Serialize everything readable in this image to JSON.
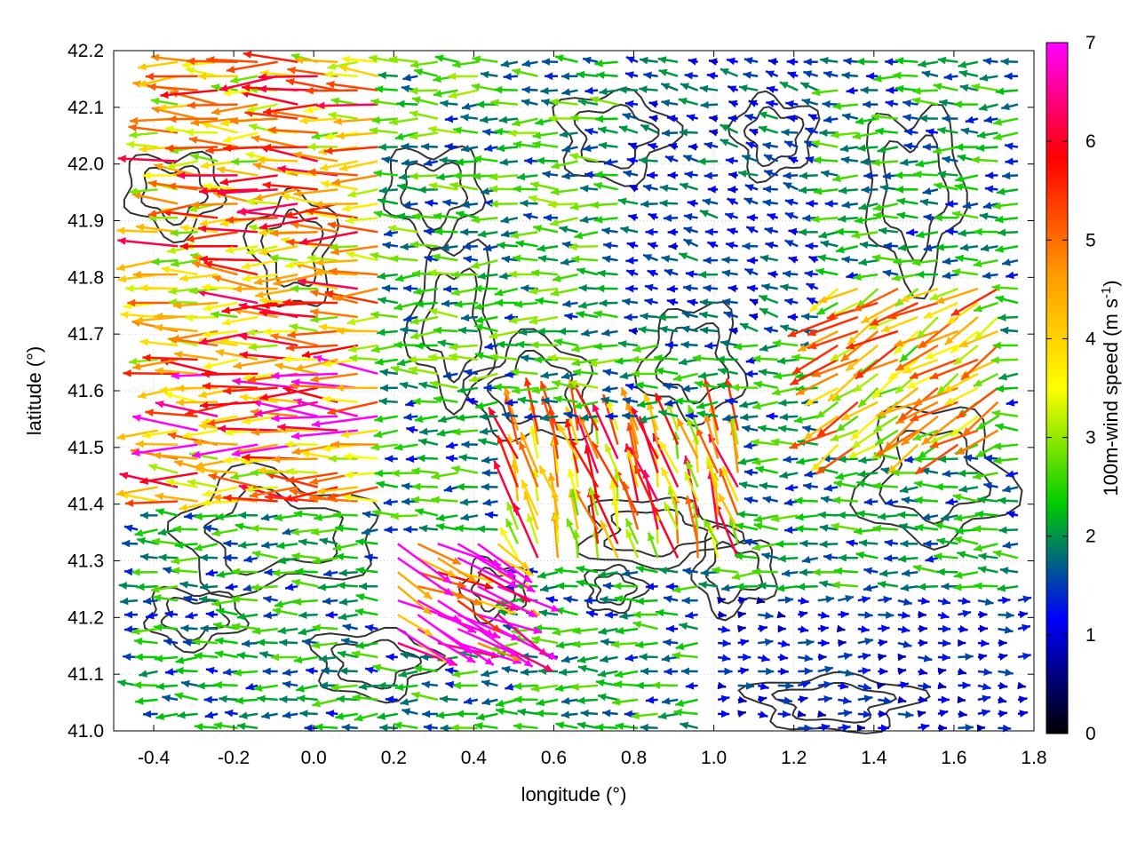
{
  "chart_data": {
    "type": "vector-field",
    "xlabel": "longitude (°)",
    "ylabel": "latitude (°)",
    "colorbar_label_main": "100m-wind speed (m s",
    "colorbar_label_sup": "-1",
    "colorbar_label_end": ")",
    "xlim": [
      -0.5,
      1.8
    ],
    "ylim": [
      41.0,
      42.2
    ],
    "xticks": [
      -0.4,
      -0.2,
      0.0,
      0.2,
      0.4,
      0.6,
      0.8,
      1.0,
      1.2,
      1.4,
      1.6,
      1.8
    ],
    "xtick_labels": [
      "-0.4",
      "-0.2",
      "0.0",
      "0.2",
      "0.4",
      "0.6",
      "0.8",
      "1.0",
      "1.2",
      "1.4",
      "1.6",
      "1.8"
    ],
    "yticks": [
      41.0,
      41.1,
      41.2,
      41.3,
      41.4,
      41.5,
      41.6,
      41.7,
      41.8,
      41.9,
      42.0,
      42.1,
      42.2
    ],
    "ytick_labels": [
      "41.0",
      "41.1",
      "41.2",
      "41.3",
      "41.4",
      "41.5",
      "41.6",
      "41.7",
      "41.8",
      "41.9",
      "42.0",
      "42.1",
      "42.2"
    ],
    "clim": [
      0,
      7
    ],
    "cticks": [
      0,
      1,
      2,
      3,
      4,
      5,
      6,
      7
    ],
    "ctick_labels": [
      "0",
      "1",
      "2",
      "3",
      "4",
      "5",
      "6",
      "7"
    ],
    "colormap": [
      "#000000",
      "#0000ff",
      "#00cc00",
      "#ffff00",
      "#ff9900",
      "#ff0000",
      "#ff00ff"
    ],
    "grid": true,
    "contour_color": "#333333",
    "vector_regions": [
      {
        "lon": [
          -0.5,
          0.2
        ],
        "lat": [
          41.4,
          42.2
        ],
        "u": -4.5,
        "v": 0.05,
        "speed": 4.5
      },
      {
        "lon": [
          -0.5,
          0.2
        ],
        "lat": [
          41.48,
          41.65
        ],
        "u": -5.5,
        "v": 0.05,
        "speed": 5.5
      },
      {
        "lon": [
          0.2,
          0.8
        ],
        "lat": [
          41.6,
          42.2
        ],
        "u": -2.2,
        "v": 0.0,
        "speed": 2.2
      },
      {
        "lon": [
          0.2,
          0.5
        ],
        "lat": [
          41.15,
          41.35
        ],
        "u": 4.0,
        "v": -2.0,
        "speed": 6.5
      },
      {
        "lon": [
          0.5,
          1.1
        ],
        "lat": [
          41.3,
          41.55
        ],
        "u": -0.6,
        "v": 2.0,
        "speed": 4.5
      },
      {
        "lon": [
          1.3,
          1.75
        ],
        "lat": [
          41.5,
          41.8
        ],
        "u": -2.5,
        "v": -1.5,
        "speed": 4.0
      },
      {
        "lon": [
          1.0,
          1.8
        ],
        "lat": [
          41.0,
          41.25
        ],
        "u": 1.5,
        "v": 0.0,
        "speed": 1.2
      },
      {
        "lon": [
          0.8,
          1.3
        ],
        "lat": [
          41.7,
          42.2
        ],
        "u": -1.0,
        "v": 0.2,
        "speed": 1.5
      }
    ]
  }
}
